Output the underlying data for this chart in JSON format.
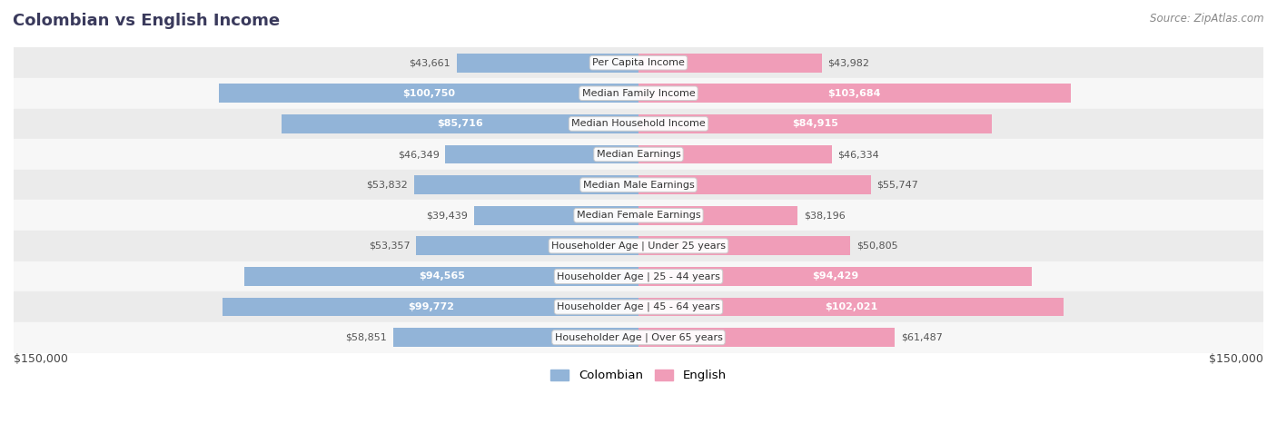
{
  "title": "Colombian vs English Income",
  "source": "Source: ZipAtlas.com",
  "categories": [
    "Per Capita Income",
    "Median Family Income",
    "Median Household Income",
    "Median Earnings",
    "Median Male Earnings",
    "Median Female Earnings",
    "Householder Age | Under 25 years",
    "Householder Age | 25 - 44 years",
    "Householder Age | 45 - 64 years",
    "Householder Age | Over 65 years"
  ],
  "colombian_values": [
    43661,
    100750,
    85716,
    46349,
    53832,
    39439,
    53357,
    94565,
    99772,
    58851
  ],
  "english_values": [
    43982,
    103684,
    84915,
    46334,
    55747,
    38196,
    50805,
    94429,
    102021,
    61487
  ],
  "colombian_labels": [
    "$43,661",
    "$100,750",
    "$85,716",
    "$46,349",
    "$53,832",
    "$39,439",
    "$53,357",
    "$94,565",
    "$99,772",
    "$58,851"
  ],
  "english_labels": [
    "$43,982",
    "$103,684",
    "$84,915",
    "$46,334",
    "$55,747",
    "$38,196",
    "$50,805",
    "$94,429",
    "$102,021",
    "$61,487"
  ],
  "colombian_color": "#92b4d8",
  "english_color": "#f09db8",
  "max_value": 150000,
  "x_label_left": "$150,000",
  "x_label_right": "$150,000",
  "bar_height": 0.62,
  "row_bg_colors": [
    "#ebebeb",
    "#f7f7f7",
    "#ebebeb",
    "#f7f7f7",
    "#ebebeb",
    "#f7f7f7",
    "#ebebeb",
    "#f7f7f7",
    "#ebebeb",
    "#f7f7f7"
  ],
  "title_color": "#3a3a5c",
  "source_color": "#888888",
  "label_color_outside": "#555555",
  "inside_threshold": 65000
}
